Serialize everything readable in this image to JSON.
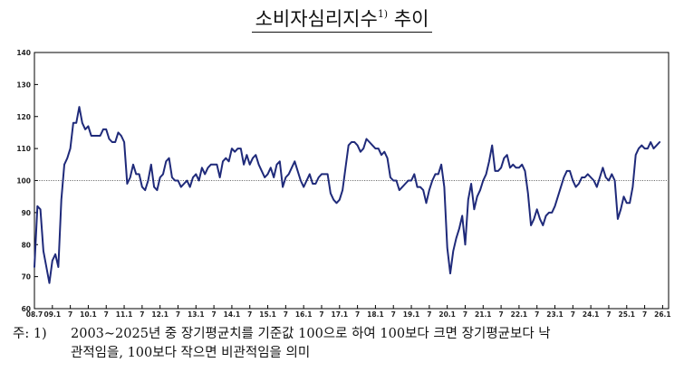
{
  "title": {
    "text": "소비자심리지수",
    "footnote_mark": "1)",
    "suffix": "추이"
  },
  "note": {
    "prefix": "주: 1)",
    "line1": "2003~2025년 중 장기평균치를 기준값 100으로 하여 100보다 크면 장기평균보다 낙",
    "line2": "관적임을, 100보다 작으면 비관적임을 의미"
  },
  "colors": {
    "line": "#1f2a7a",
    "reference": "#444444",
    "axis": "#000000"
  },
  "chart_data": {
    "type": "line",
    "title": "소비자심리지수 추이",
    "xlabel": "",
    "ylabel": "",
    "ylim": [
      60,
      140
    ],
    "yticks": [
      60,
      70,
      80,
      90,
      100,
      110,
      120,
      130,
      140
    ],
    "reference_line": 100,
    "grid": false,
    "x_start": "2008-07",
    "x_end": "2026-03",
    "xtick_labels": [
      {
        "label": "08.7",
        "date": "2008-07"
      },
      {
        "label": "09.1",
        "date": "2009-01"
      },
      {
        "label": "7",
        "date": "2009-07"
      },
      {
        "label": "10.1",
        "date": "2010-01"
      },
      {
        "label": "7",
        "date": "2010-07"
      },
      {
        "label": "11.1",
        "date": "2011-01"
      },
      {
        "label": "7",
        "date": "2011-07"
      },
      {
        "label": "12.1",
        "date": "2012-01"
      },
      {
        "label": "7",
        "date": "2012-07"
      },
      {
        "label": "13.1",
        "date": "2013-01"
      },
      {
        "label": "7",
        "date": "2013-07"
      },
      {
        "label": "14.1",
        "date": "2014-01"
      },
      {
        "label": "7",
        "date": "2014-07"
      },
      {
        "label": "15.1",
        "date": "2015-01"
      },
      {
        "label": "7",
        "date": "2015-07"
      },
      {
        "label": "16.1",
        "date": "2016-01"
      },
      {
        "label": "7",
        "date": "2016-07"
      },
      {
        "label": "17.1",
        "date": "2017-01"
      },
      {
        "label": "7",
        "date": "2017-07"
      },
      {
        "label": "18.1",
        "date": "2018-01"
      },
      {
        "label": "7",
        "date": "2018-07"
      },
      {
        "label": "19.1",
        "date": "2019-01"
      },
      {
        "label": "7",
        "date": "2019-07"
      },
      {
        "label": "20.1",
        "date": "2020-01"
      },
      {
        "label": "7",
        "date": "2020-07"
      },
      {
        "label": "21.1",
        "date": "2021-01"
      },
      {
        "label": "7",
        "date": "2021-07"
      },
      {
        "label": "22.1",
        "date": "2022-01"
      },
      {
        "label": "7",
        "date": "2022-07"
      },
      {
        "label": "23.1",
        "date": "2023-01"
      },
      {
        "label": "7",
        "date": "2023-07"
      },
      {
        "label": "24.1",
        "date": "2024-01"
      },
      {
        "label": "7",
        "date": "2024-07"
      },
      {
        "label": "25.1",
        "date": "2025-01"
      },
      {
        "label": "7",
        "date": "2025-07"
      },
      {
        "label": "26.1",
        "date": "2026-01"
      }
    ],
    "series": [
      {
        "values": [
          [
            "2008-07",
            73
          ],
          [
            "2008-08",
            92
          ],
          [
            "2008-09",
            91
          ],
          [
            "2008-10",
            78
          ],
          [
            "2008-11",
            73
          ],
          [
            "2008-12",
            68
          ],
          [
            "2009-01",
            75
          ],
          [
            "2009-02",
            77
          ],
          [
            "2009-03",
            73
          ],
          [
            "2009-04",
            94
          ],
          [
            "2009-05",
            105
          ],
          [
            "2009-06",
            107
          ],
          [
            "2009-07",
            110
          ],
          [
            "2009-08",
            118
          ],
          [
            "2009-09",
            118
          ],
          [
            "2009-10",
            123
          ],
          [
            "2009-11",
            118
          ],
          [
            "2009-12",
            116
          ],
          [
            "2010-01",
            117
          ],
          [
            "2010-02",
            114
          ],
          [
            "2010-03",
            114
          ],
          [
            "2010-04",
            114
          ],
          [
            "2010-05",
            114
          ],
          [
            "2010-06",
            116
          ],
          [
            "2010-07",
            116
          ],
          [
            "2010-08",
            113
          ],
          [
            "2010-09",
            112
          ],
          [
            "2010-10",
            112
          ],
          [
            "2010-11",
            115
          ],
          [
            "2010-12",
            114
          ],
          [
            "2011-01",
            112
          ],
          [
            "2011-02",
            99
          ],
          [
            "2011-03",
            101
          ],
          [
            "2011-04",
            105
          ],
          [
            "2011-05",
            102
          ],
          [
            "2011-06",
            102
          ],
          [
            "2011-07",
            98
          ],
          [
            "2011-08",
            97
          ],
          [
            "2011-09",
            100
          ],
          [
            "2011-10",
            105
          ],
          [
            "2011-11",
            98
          ],
          [
            "2011-12",
            97
          ],
          [
            "2012-01",
            101
          ],
          [
            "2012-02",
            102
          ],
          [
            "2012-03",
            106
          ],
          [
            "2012-04",
            107
          ],
          [
            "2012-05",
            101
          ],
          [
            "2012-06",
            100
          ],
          [
            "2012-07",
            100
          ],
          [
            "2012-08",
            98
          ],
          [
            "2012-09",
            99
          ],
          [
            "2012-10",
            100
          ],
          [
            "2012-11",
            98
          ],
          [
            "2012-12",
            101
          ],
          [
            "2013-01",
            102
          ],
          [
            "2013-02",
            100
          ],
          [
            "2013-03",
            104
          ],
          [
            "2013-04",
            102
          ],
          [
            "2013-05",
            104
          ],
          [
            "2013-06",
            105
          ],
          [
            "2013-07",
            105
          ],
          [
            "2013-08",
            105
          ],
          [
            "2013-09",
            101
          ],
          [
            "2013-10",
            106
          ],
          [
            "2013-11",
            107
          ],
          [
            "2013-12",
            106
          ],
          [
            "2014-01",
            110
          ],
          [
            "2014-02",
            109
          ],
          [
            "2014-03",
            110
          ],
          [
            "2014-04",
            110
          ],
          [
            "2014-05",
            105
          ],
          [
            "2014-06",
            108
          ],
          [
            "2014-07",
            105
          ],
          [
            "2014-08",
            107
          ],
          [
            "2014-09",
            108
          ],
          [
            "2014-10",
            105
          ],
          [
            "2014-11",
            103
          ],
          [
            "2014-12",
            101
          ],
          [
            "2015-01",
            102
          ],
          [
            "2015-02",
            104
          ],
          [
            "2015-03",
            101
          ],
          [
            "2015-04",
            105
          ],
          [
            "2015-05",
            106
          ],
          [
            "2015-06",
            98
          ],
          [
            "2015-07",
            101
          ],
          [
            "2015-08",
            102
          ],
          [
            "2015-09",
            104
          ],
          [
            "2015-10",
            106
          ],
          [
            "2015-11",
            103
          ],
          [
            "2015-12",
            100
          ],
          [
            "2016-01",
            98
          ],
          [
            "2016-02",
            100
          ],
          [
            "2016-03",
            102
          ],
          [
            "2016-04",
            99
          ],
          [
            "2016-05",
            99
          ],
          [
            "2016-06",
            101
          ],
          [
            "2016-07",
            102
          ],
          [
            "2016-08",
            102
          ],
          [
            "2016-09",
            102
          ],
          [
            "2016-10",
            96
          ],
          [
            "2016-11",
            94
          ],
          [
            "2016-12",
            93
          ],
          [
            "2017-01",
            94
          ],
          [
            "2017-02",
            97
          ],
          [
            "2017-03",
            104
          ],
          [
            "2017-04",
            111
          ],
          [
            "2017-05",
            112
          ],
          [
            "2017-06",
            112
          ],
          [
            "2017-07",
            111
          ],
          [
            "2017-08",
            109
          ],
          [
            "2017-09",
            110
          ],
          [
            "2017-10",
            113
          ],
          [
            "2017-11",
            112
          ],
          [
            "2017-12",
            111
          ],
          [
            "2018-01",
            110
          ],
          [
            "2018-02",
            110
          ],
          [
            "2018-03",
            108
          ],
          [
            "2018-04",
            109
          ],
          [
            "2018-05",
            107
          ],
          [
            "2018-06",
            101
          ],
          [
            "2018-07",
            100
          ],
          [
            "2018-08",
            100
          ],
          [
            "2018-09",
            97
          ],
          [
            "2018-10",
            98
          ],
          [
            "2018-11",
            99
          ],
          [
            "2018-12",
            100
          ],
          [
            "2019-01",
            100
          ],
          [
            "2019-02",
            102
          ],
          [
            "2019-03",
            98
          ],
          [
            "2019-04",
            98
          ],
          [
            "2019-05",
            97
          ],
          [
            "2019-06",
            93
          ],
          [
            "2019-07",
            97
          ],
          [
            "2019-08",
            100
          ],
          [
            "2019-09",
            102
          ],
          [
            "2019-10",
            102
          ],
          [
            "2019-11",
            105
          ],
          [
            "2019-12",
            98
          ],
          [
            "2020-01",
            79
          ],
          [
            "2020-02",
            71
          ],
          [
            "2020-03",
            78
          ],
          [
            "2020-04",
            82
          ],
          [
            "2020-05",
            85
          ],
          [
            "2020-06",
            89
          ],
          [
            "2020-07",
            80
          ],
          [
            "2020-08",
            94
          ],
          [
            "2020-09",
            99
          ],
          [
            "2020-10",
            91
          ],
          [
            "2020-11",
            95
          ],
          [
            "2020-12",
            97
          ],
          [
            "2021-01",
            100
          ],
          [
            "2021-02",
            102
          ],
          [
            "2021-03",
            106
          ],
          [
            "2021-04",
            111
          ],
          [
            "2021-05",
            103
          ],
          [
            "2021-06",
            103
          ],
          [
            "2021-07",
            104
          ],
          [
            "2021-08",
            107
          ],
          [
            "2021-09",
            108
          ],
          [
            "2021-10",
            104
          ],
          [
            "2021-11",
            105
          ],
          [
            "2021-12",
            104
          ],
          [
            "2022-01",
            104
          ],
          [
            "2022-02",
            105
          ],
          [
            "2022-03",
            103
          ],
          [
            "2022-04",
            96
          ],
          [
            "2022-05",
            86
          ],
          [
            "2022-06",
            88
          ],
          [
            "2022-07",
            91
          ],
          [
            "2022-08",
            88
          ],
          [
            "2022-09",
            86
          ],
          [
            "2022-10",
            89
          ],
          [
            "2022-11",
            90
          ],
          [
            "2022-12",
            90
          ],
          [
            "2023-01",
            92
          ],
          [
            "2023-02",
            95
          ],
          [
            "2023-03",
            98
          ],
          [
            "2023-04",
            101
          ],
          [
            "2023-05",
            103
          ],
          [
            "2023-06",
            103
          ],
          [
            "2023-07",
            100
          ],
          [
            "2023-08",
            98
          ],
          [
            "2023-09",
            99
          ],
          [
            "2023-10",
            101
          ],
          [
            "2023-11",
            101
          ],
          [
            "2023-12",
            102
          ],
          [
            "2024-01",
            101
          ],
          [
            "2024-02",
            100
          ],
          [
            "2024-03",
            98
          ],
          [
            "2024-04",
            101
          ],
          [
            "2024-05",
            104
          ],
          [
            "2024-06",
            101
          ],
          [
            "2024-07",
            100
          ],
          [
            "2024-08",
            102
          ],
          [
            "2024-09",
            100
          ],
          [
            "2024-10",
            88
          ],
          [
            "2024-11",
            91
          ],
          [
            "2024-12",
            95
          ],
          [
            "2025-01",
            93
          ],
          [
            "2025-02",
            93
          ],
          [
            "2025-03",
            98
          ],
          [
            "2025-04",
            108
          ],
          [
            "2025-05",
            110
          ],
          [
            "2025-06",
            111
          ],
          [
            "2025-07",
            110
          ],
          [
            "2025-08",
            110
          ],
          [
            "2025-09",
            112
          ],
          [
            "2025-10",
            110
          ],
          [
            "2025-11",
            111
          ],
          [
            "2025-12",
            112
          ]
        ]
      }
    ]
  }
}
